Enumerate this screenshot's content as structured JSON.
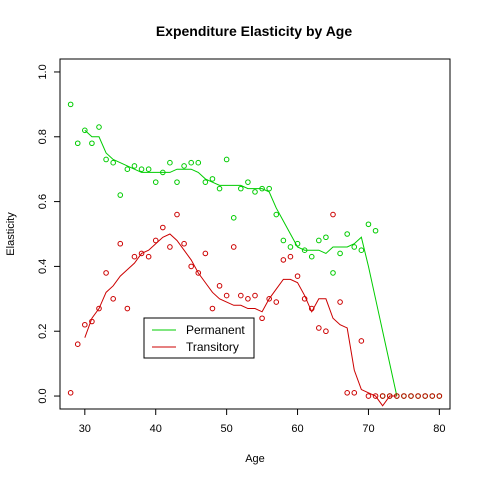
{
  "chart_data": {
    "type": "scatter",
    "title": "Expenditure Elasticity by Age",
    "xlabel": "Age",
    "ylabel": "Elasticity",
    "xlim": [
      26.5,
      81.5
    ],
    "ylim": [
      -0.04,
      1.04
    ],
    "xticks": [
      30,
      40,
      50,
      60,
      70,
      80
    ],
    "yticks": [
      0.0,
      0.2,
      0.4,
      0.6,
      0.8,
      1.0
    ],
    "xtick_labels": [
      "30",
      "40",
      "50",
      "60",
      "70",
      "80"
    ],
    "ytick_labels": [
      "0.0",
      "0.2",
      "0.4",
      "0.6",
      "0.8",
      "1.0"
    ],
    "grid": false,
    "legend": {
      "position": "bottom-left",
      "entries": [
        "Permanent",
        "Transitory"
      ]
    },
    "series": [
      {
        "name": "Permanent",
        "color": "#00cc00",
        "points": {
          "x": [
            28,
            29,
            30,
            31,
            32,
            33,
            34,
            35,
            36,
            37,
            38,
            39,
            40,
            41,
            42,
            43,
            44,
            45,
            46,
            47,
            48,
            49,
            50,
            51,
            52,
            53,
            54,
            55,
            56,
            57,
            58,
            59,
            60,
            61,
            62,
            63,
            64,
            65,
            66,
            67,
            68,
            69,
            70,
            71,
            72,
            73,
            74,
            75,
            76,
            77,
            78,
            79,
            80
          ],
          "y": [
            0.9,
            0.78,
            0.82,
            0.78,
            0.83,
            0.73,
            0.72,
            0.62,
            0.7,
            0.71,
            0.7,
            0.7,
            0.66,
            0.69,
            0.72,
            0.66,
            0.71,
            0.72,
            0.72,
            0.66,
            0.67,
            0.64,
            0.73,
            0.55,
            0.64,
            0.66,
            0.63,
            0.64,
            0.64,
            0.56,
            0.48,
            0.46,
            0.47,
            0.45,
            0.43,
            0.48,
            0.49,
            0.38,
            0.44,
            0.5,
            0.46,
            0.45,
            0.53,
            0.51,
            0.0,
            0.0,
            0.0,
            0.0,
            0.0,
            0.0,
            0.0,
            0.0,
            0.0
          ]
        },
        "line": {
          "x": [
            30,
            31,
            32,
            33,
            34,
            35,
            36,
            37,
            38,
            39,
            40,
            41,
            42,
            43,
            44,
            45,
            46,
            47,
            48,
            49,
            50,
            51,
            52,
            53,
            54,
            55,
            56,
            57,
            58,
            59,
            60,
            61,
            62,
            63,
            64,
            65,
            66,
            67,
            68,
            69,
            70,
            71,
            72,
            73,
            74
          ],
          "y": [
            0.82,
            0.8,
            0.8,
            0.75,
            0.73,
            0.72,
            0.71,
            0.7,
            0.69,
            0.69,
            0.69,
            0.69,
            0.69,
            0.7,
            0.7,
            0.7,
            0.69,
            0.67,
            0.66,
            0.65,
            0.65,
            0.65,
            0.65,
            0.64,
            0.64,
            0.64,
            0.63,
            0.58,
            0.54,
            0.5,
            0.46,
            0.45,
            0.45,
            0.45,
            0.44,
            0.46,
            0.46,
            0.46,
            0.47,
            0.49,
            0.4,
            0.3,
            0.2,
            0.1,
            0.0
          ]
        }
      },
      {
        "name": "Transitory",
        "color": "#cc0000",
        "points": {
          "x": [
            28,
            29,
            30,
            31,
            32,
            33,
            34,
            35,
            36,
            37,
            38,
            39,
            40,
            41,
            42,
            43,
            44,
            45,
            46,
            47,
            48,
            49,
            50,
            51,
            52,
            53,
            54,
            55,
            56,
            57,
            58,
            59,
            60,
            61,
            62,
            63,
            64,
            65,
            66,
            67,
            68,
            69,
            70,
            71,
            72,
            73,
            74,
            75,
            76,
            77,
            78,
            79,
            80
          ],
          "y": [
            0.01,
            0.16,
            0.22,
            0.23,
            0.27,
            0.38,
            0.3,
            0.47,
            0.27,
            0.43,
            0.44,
            0.43,
            0.48,
            0.52,
            0.46,
            0.56,
            0.47,
            0.4,
            0.38,
            0.44,
            0.27,
            0.34,
            0.31,
            0.46,
            0.31,
            0.3,
            0.31,
            0.24,
            0.3,
            0.29,
            0.42,
            0.43,
            0.37,
            0.3,
            0.27,
            0.21,
            0.2,
            0.56,
            0.29,
            0.01,
            0.01,
            0.17,
            0.0,
            0.0,
            0.0,
            0.0,
            0.0,
            0.0,
            0.0,
            0.0,
            0.0,
            0.0,
            0.0
          ]
        },
        "line": {
          "x": [
            30,
            31,
            32,
            33,
            34,
            35,
            36,
            37,
            38,
            39,
            40,
            41,
            42,
            43,
            44,
            45,
            46,
            47,
            48,
            49,
            50,
            51,
            52,
            53,
            54,
            55,
            56,
            57,
            58,
            59,
            60,
            61,
            62,
            63,
            64,
            65,
            66,
            67,
            68,
            69,
            70,
            71,
            72,
            73,
            74
          ],
          "y": [
            0.18,
            0.24,
            0.27,
            0.32,
            0.34,
            0.37,
            0.39,
            0.41,
            0.44,
            0.45,
            0.47,
            0.49,
            0.5,
            0.48,
            0.45,
            0.42,
            0.38,
            0.35,
            0.32,
            0.3,
            0.29,
            0.28,
            0.28,
            0.27,
            0.27,
            0.26,
            0.3,
            0.33,
            0.36,
            0.36,
            0.35,
            0.31,
            0.26,
            0.3,
            0.3,
            0.24,
            0.22,
            0.21,
            0.08,
            0.02,
            0.01,
            0.0,
            -0.03,
            0.0,
            0.0
          ]
        }
      }
    ]
  }
}
